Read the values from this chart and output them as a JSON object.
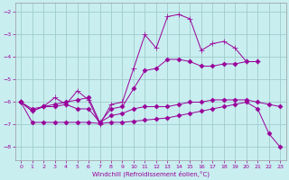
{
  "title": "",
  "xlabel": "Windchill (Refroidissement éolien,°C)",
  "bg_color": "#c8eef0",
  "grid_color": "#a0cccc",
  "line_color": "#990099",
  "xlim": [
    -0.5,
    23.5
  ],
  "ylim": [
    -8.6,
    -1.6
  ],
  "yticks": [
    -8,
    -7,
    -6,
    -5,
    -4,
    -3,
    -2
  ],
  "xticks": [
    0,
    1,
    2,
    3,
    4,
    5,
    6,
    7,
    8,
    9,
    10,
    11,
    12,
    13,
    14,
    15,
    16,
    17,
    18,
    19,
    20,
    21,
    22,
    23
  ],
  "series": [
    {
      "x": [
        0,
        1,
        2,
        3,
        4,
        5,
        6,
        7,
        8,
        9,
        10,
        11,
        12,
        13,
        14,
        15,
        16,
        17,
        18,
        19,
        20,
        21
      ],
      "y": [
        -6.0,
        -6.4,
        -6.2,
        -5.8,
        -6.1,
        -5.5,
        -5.9,
        -7.0,
        -6.1,
        -6.0,
        -4.5,
        -3.0,
        -3.6,
        -2.2,
        -2.1,
        -2.3,
        -3.7,
        -3.4,
        -3.3,
        -3.6,
        -4.2,
        -4.2
      ],
      "marker": "+",
      "ms": 4
    },
    {
      "x": [
        0,
        1,
        2,
        3,
        4,
        5,
        6,
        7,
        8,
        9,
        10,
        11,
        12,
        13,
        14,
        15,
        16,
        17,
        18,
        19,
        20,
        21,
        22,
        23
      ],
      "y": [
        -6.0,
        -6.4,
        -6.2,
        -6.2,
        -6.1,
        -6.3,
        -6.3,
        -6.9,
        -6.6,
        -6.5,
        -6.3,
        -6.2,
        -6.2,
        -6.2,
        -6.1,
        -6.0,
        -6.0,
        -5.9,
        -5.9,
        -5.9,
        -5.9,
        -6.0,
        -6.1,
        -6.2
      ],
      "marker": "D",
      "ms": 2.5
    },
    {
      "x": [
        0,
        1,
        2,
        3,
        4,
        5,
        6,
        7,
        8,
        9,
        10,
        11,
        12,
        13,
        14,
        15,
        16,
        17,
        18,
        19,
        20,
        21,
        22,
        23
      ],
      "y": [
        -6.0,
        -6.9,
        -6.9,
        -6.9,
        -6.9,
        -6.9,
        -6.9,
        -6.95,
        -6.9,
        -6.9,
        -6.85,
        -6.8,
        -6.75,
        -6.7,
        -6.6,
        -6.5,
        -6.4,
        -6.3,
        -6.2,
        -6.1,
        -6.0,
        -6.3,
        -7.4,
        -8.0
      ],
      "marker": "D",
      "ms": 2.5
    },
    {
      "x": [
        0,
        1,
        2,
        3,
        4,
        5,
        6,
        7,
        8,
        9,
        10,
        11,
        12,
        13,
        14,
        15,
        16,
        17,
        18,
        19,
        20,
        21
      ],
      "y": [
        -6.0,
        -6.3,
        -6.2,
        -6.1,
        -6.0,
        -5.9,
        -5.8,
        -6.9,
        -6.3,
        -6.2,
        -5.4,
        -4.6,
        -4.5,
        -4.1,
        -4.1,
        -4.2,
        -4.4,
        -4.4,
        -4.3,
        -4.3,
        -4.2,
        -4.2
      ],
      "marker": "D",
      "ms": 2.5
    }
  ]
}
